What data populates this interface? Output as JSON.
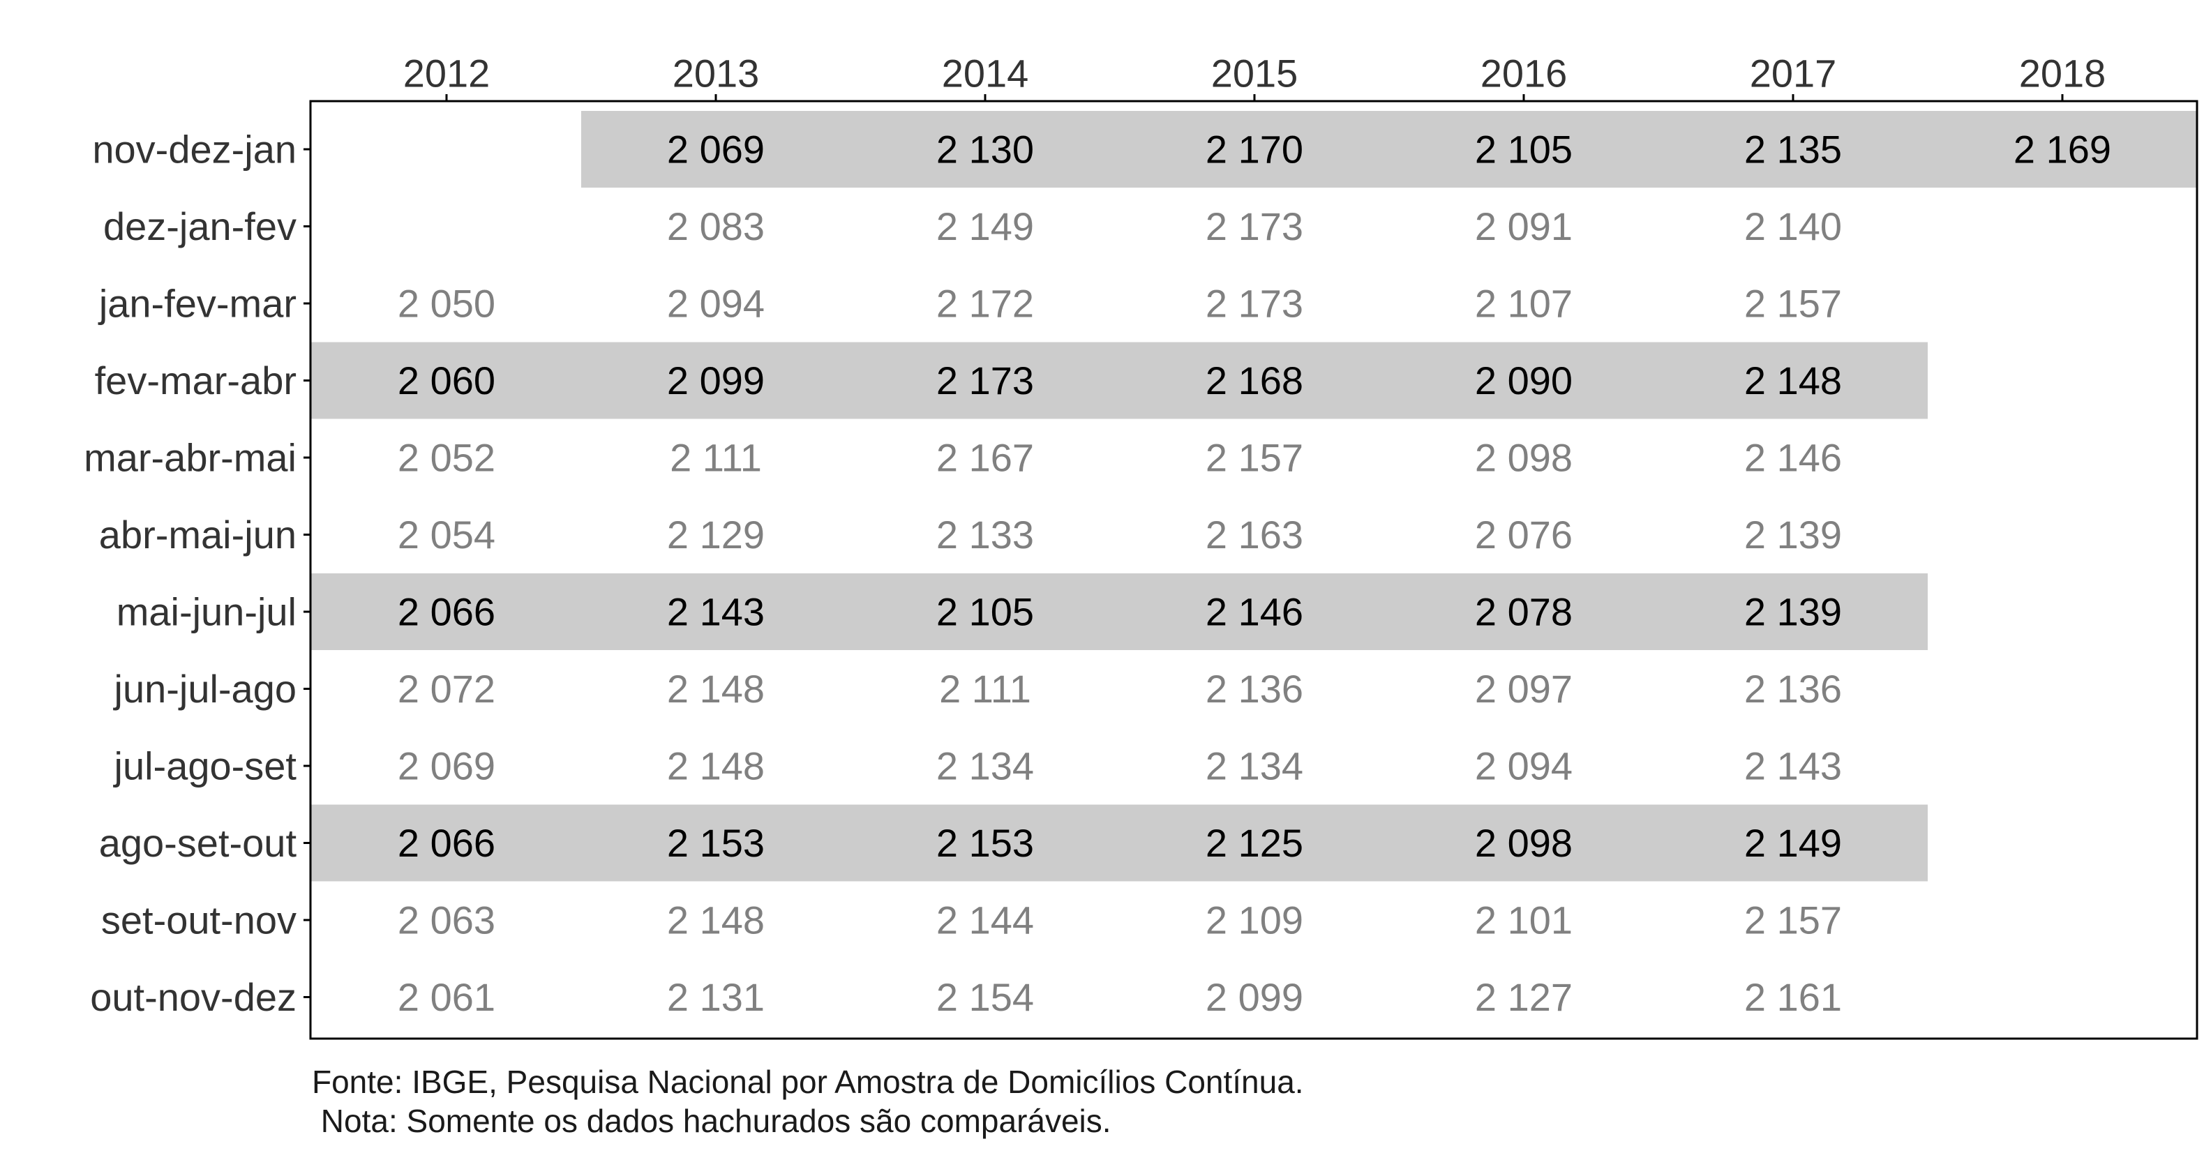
{
  "chart_data": {
    "type": "table",
    "columns": [
      "2012",
      "2013",
      "2014",
      "2015",
      "2016",
      "2017",
      "2018"
    ],
    "rows": [
      {
        "label": "nov-dez-jan",
        "highlight": true,
        "values": [
          null,
          "2 069",
          "2 130",
          "2 170",
          "2 105",
          "2 135",
          "2 169"
        ]
      },
      {
        "label": "dez-jan-fev",
        "highlight": false,
        "values": [
          null,
          "2 083",
          "2 149",
          "2 173",
          "2 091",
          "2 140",
          null
        ]
      },
      {
        "label": "jan-fev-mar",
        "highlight": false,
        "values": [
          "2 050",
          "2 094",
          "2 172",
          "2 173",
          "2 107",
          "2 157",
          null
        ]
      },
      {
        "label": "fev-mar-abr",
        "highlight": true,
        "values": [
          "2 060",
          "2 099",
          "2 173",
          "2 168",
          "2 090",
          "2 148",
          null
        ]
      },
      {
        "label": "mar-abr-mai",
        "highlight": false,
        "values": [
          "2 052",
          "2 111",
          "2 167",
          "2 157",
          "2 098",
          "2 146",
          null
        ]
      },
      {
        "label": "abr-mai-jun",
        "highlight": false,
        "values": [
          "2 054",
          "2 129",
          "2 133",
          "2 163",
          "2 076",
          "2 139",
          null
        ]
      },
      {
        "label": "mai-jun-jul",
        "highlight": true,
        "values": [
          "2 066",
          "2 143",
          "2 105",
          "2 146",
          "2 078",
          "2 139",
          null
        ]
      },
      {
        "label": "jun-jul-ago",
        "highlight": false,
        "values": [
          "2 072",
          "2 148",
          "2 111",
          "2 136",
          "2 097",
          "2 136",
          null
        ]
      },
      {
        "label": "jul-ago-set",
        "highlight": false,
        "values": [
          "2 069",
          "2 148",
          "2 134",
          "2 134",
          "2 094",
          "2 143",
          null
        ]
      },
      {
        "label": "ago-set-out",
        "highlight": true,
        "values": [
          "2 066",
          "2 153",
          "2 153",
          "2 125",
          "2 098",
          "2 149",
          null
        ]
      },
      {
        "label": "set-out-nov",
        "highlight": false,
        "values": [
          "2 063",
          "2 148",
          "2 144",
          "2 109",
          "2 101",
          "2 157",
          null
        ]
      },
      {
        "label": "out-nov-dez",
        "highlight": false,
        "values": [
          "2 061",
          "2 131",
          "2 154",
          "2 099",
          "2 127",
          "2 161",
          null
        ]
      }
    ],
    "colors": {
      "highlight_fill": "#cccccc",
      "highlight_text": "#000000",
      "normal_text": "#808080",
      "label_text": "#333333",
      "border": "#000000"
    }
  },
  "footer": {
    "source": "Fonte: IBGE, Pesquisa Nacional por Amostra de Domicílios Contínua.",
    "note": " Nota: Somente os dados hachurados são comparáveis."
  }
}
